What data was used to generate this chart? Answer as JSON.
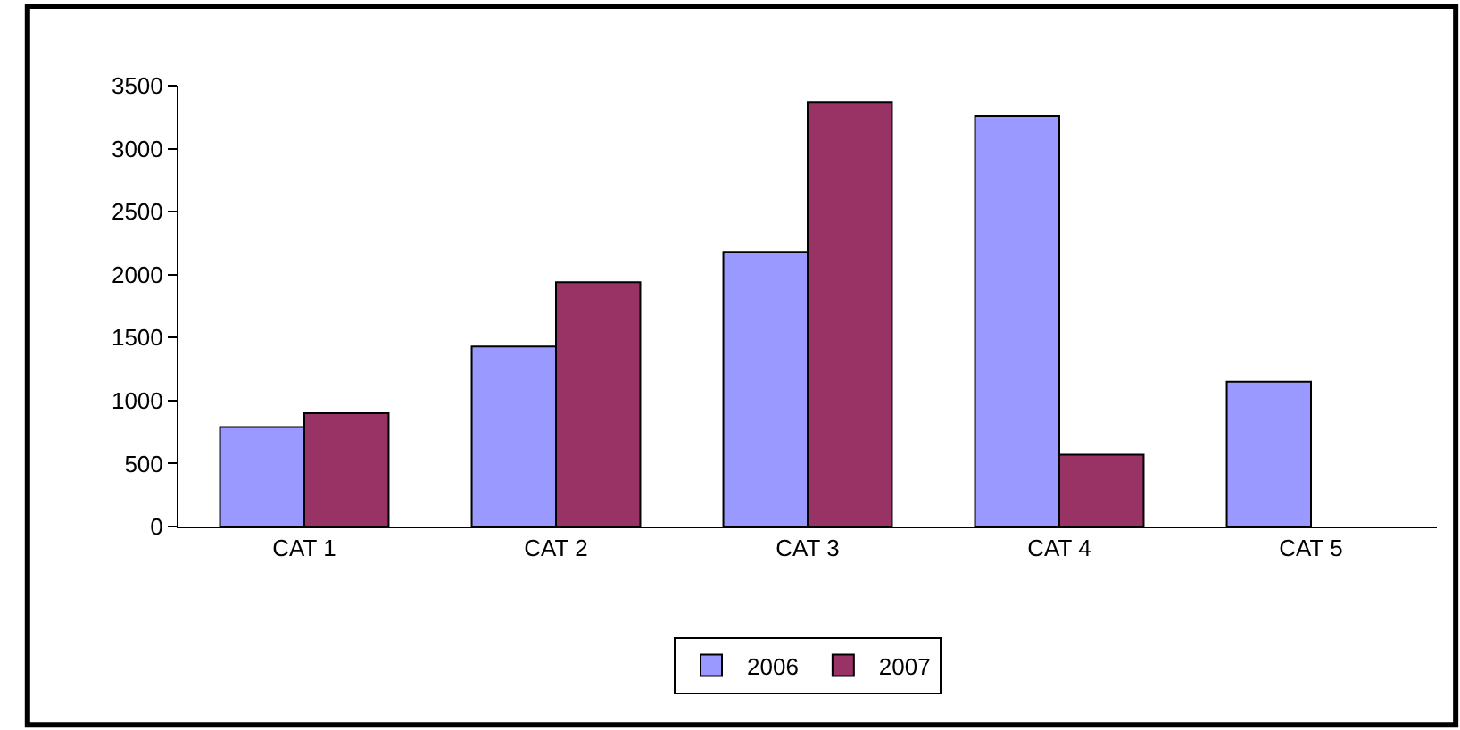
{
  "chart_data": {
    "type": "bar",
    "categories": [
      "CAT 1",
      "CAT 2",
      "CAT 3",
      "CAT 4",
      "CAT 5"
    ],
    "series": [
      {
        "name": "2006",
        "color": "#9999ff",
        "values": [
          790,
          1430,
          2180,
          3260,
          1150
        ]
      },
      {
        "name": "2007",
        "color": "#993366",
        "values": [
          900,
          1940,
          3370,
          570,
          null
        ]
      }
    ],
    "ylim": [
      0,
      3500
    ],
    "yticks": [
      0,
      500,
      1000,
      1500,
      2000,
      2500,
      3000,
      3500
    ],
    "grid": false,
    "legend": "bottom"
  }
}
